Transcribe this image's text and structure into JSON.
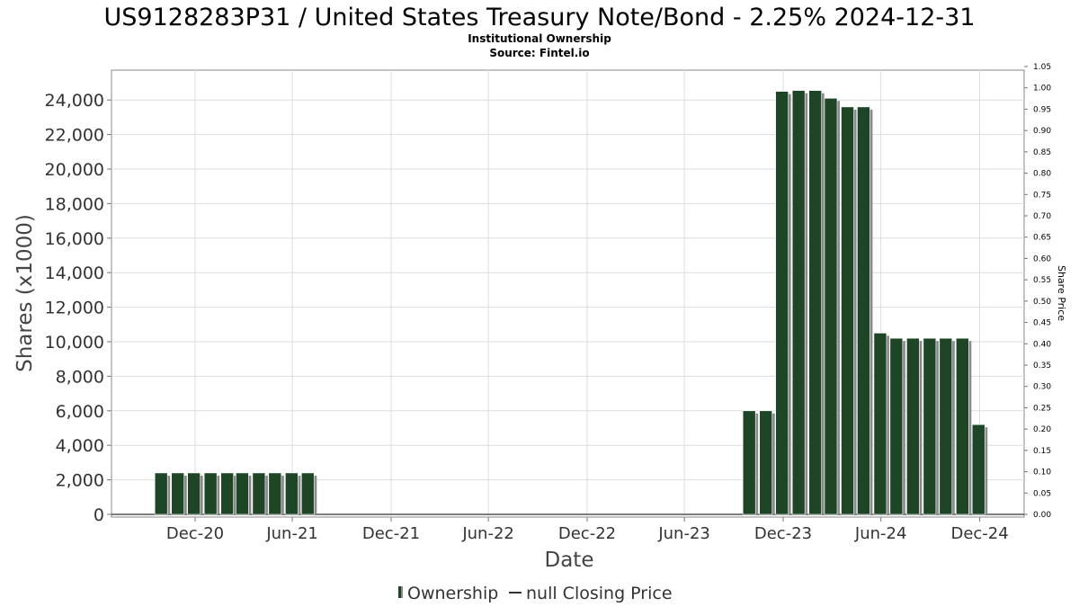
{
  "chart_data": {
    "type": "bar",
    "title": "US9128283P31 / United States Treasury Note/Bond - 2.25% 2024-12-31",
    "subtitle": "Institutional Ownership",
    "source": "Source: Fintel.io",
    "xlabel": "Date",
    "ylabel": "Shares (x1000)",
    "y2label": "Share Price",
    "ylim": [
      0,
      25800
    ],
    "y2lim": [
      0,
      1.05
    ],
    "yticks": [
      "0",
      "2,000",
      "4,000",
      "6,000",
      "8,000",
      "10,000",
      "12,000",
      "14,000",
      "16,000",
      "18,000",
      "20,000",
      "22,000",
      "24,000"
    ],
    "y2ticks": [
      "0.00",
      "0.05",
      "0.10",
      "0.15",
      "0.20",
      "0.25",
      "0.30",
      "0.35",
      "0.40",
      "0.45",
      "0.50",
      "0.55",
      "0.60",
      "0.65",
      "0.70",
      "0.75",
      "0.80",
      "0.85",
      "0.90",
      "0.95",
      "1.00",
      "1.05"
    ],
    "xticks": [
      "Dec-20",
      "Jun-21",
      "Dec-21",
      "Jun-22",
      "Dec-22",
      "Jun-23",
      "Dec-23",
      "Jun-24",
      "Dec-24"
    ],
    "grid": true,
    "legend_position": "bottom",
    "series": [
      {
        "name": "Ownership",
        "color": "#1e4626",
        "points": [
          {
            "x": "2020-10-01",
            "y": 2400
          },
          {
            "x": "2020-11-01",
            "y": 2400
          },
          {
            "x": "2020-12-01",
            "y": 2400
          },
          {
            "x": "2021-01-01",
            "y": 2400
          },
          {
            "x": "2021-02-01",
            "y": 2400
          },
          {
            "x": "2021-03-01",
            "y": 2400
          },
          {
            "x": "2021-04-01",
            "y": 2400
          },
          {
            "x": "2021-05-01",
            "y": 2400
          },
          {
            "x": "2021-06-01",
            "y": 2400
          },
          {
            "x": "2021-07-01",
            "y": 2400
          },
          {
            "x": "2023-10-01",
            "y": 6000
          },
          {
            "x": "2023-11-01",
            "y": 6000
          },
          {
            "x": "2023-12-01",
            "y": 24500
          },
          {
            "x": "2024-01-01",
            "y": 24550
          },
          {
            "x": "2024-02-01",
            "y": 24550
          },
          {
            "x": "2024-03-01",
            "y": 24100
          },
          {
            "x": "2024-04-01",
            "y": 23600
          },
          {
            "x": "2024-05-01",
            "y": 23600
          },
          {
            "x": "2024-06-01",
            "y": 10500
          },
          {
            "x": "2024-07-01",
            "y": 10200
          },
          {
            "x": "2024-08-01",
            "y": 10200
          },
          {
            "x": "2024-09-01",
            "y": 10200
          },
          {
            "x": "2024-10-01",
            "y": 10200
          },
          {
            "x": "2024-11-01",
            "y": 10200
          },
          {
            "x": "2024-12-01",
            "y": 5200
          }
        ]
      }
    ]
  },
  "legend": {
    "ownership_label": "Ownership",
    "price_label": "null Closing Price"
  },
  "colors": {
    "bar": "#1e4626",
    "bar_shadow": "#8a8a8a",
    "grid": "#dddddd",
    "axis": "#777777"
  }
}
